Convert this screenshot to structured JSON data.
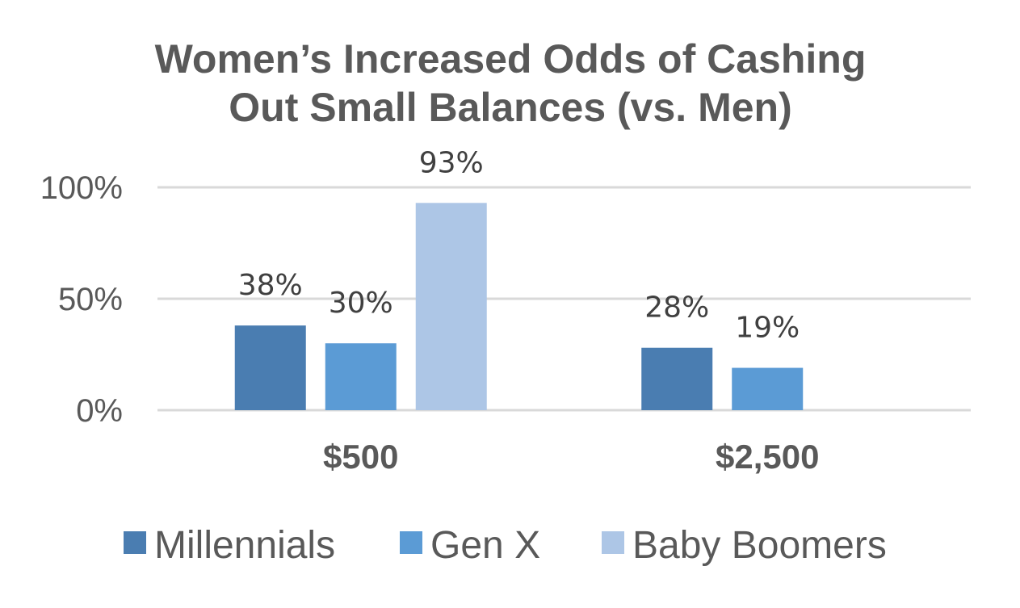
{
  "chart_data": {
    "type": "bar",
    "title_lines": [
      "Women’s Increased Odds of Cashing",
      "Out Small Balances (vs. Men)"
    ],
    "categories": [
      "$500",
      "$2,500"
    ],
    "series": [
      {
        "name": "Millennials",
        "values": [
          38,
          28
        ],
        "labels": [
          "38%",
          "28%"
        ],
        "color": "#4a7db1"
      },
      {
        "name": "Gen X",
        "values": [
          30,
          19
        ],
        "labels": [
          "30%",
          "19%"
        ],
        "color": "#5b9bd5"
      },
      {
        "name": "Baby Boomers",
        "values": [
          93,
          null
        ],
        "labels": [
          "93%",
          ""
        ],
        "color": "#adc6e6"
      }
    ],
    "yticks": [
      0,
      50,
      100
    ],
    "ytick_labels": [
      "0%",
      "50%",
      "100%"
    ],
    "ylim": [
      0,
      100
    ],
    "grid": true,
    "legend_position": "bottom"
  }
}
